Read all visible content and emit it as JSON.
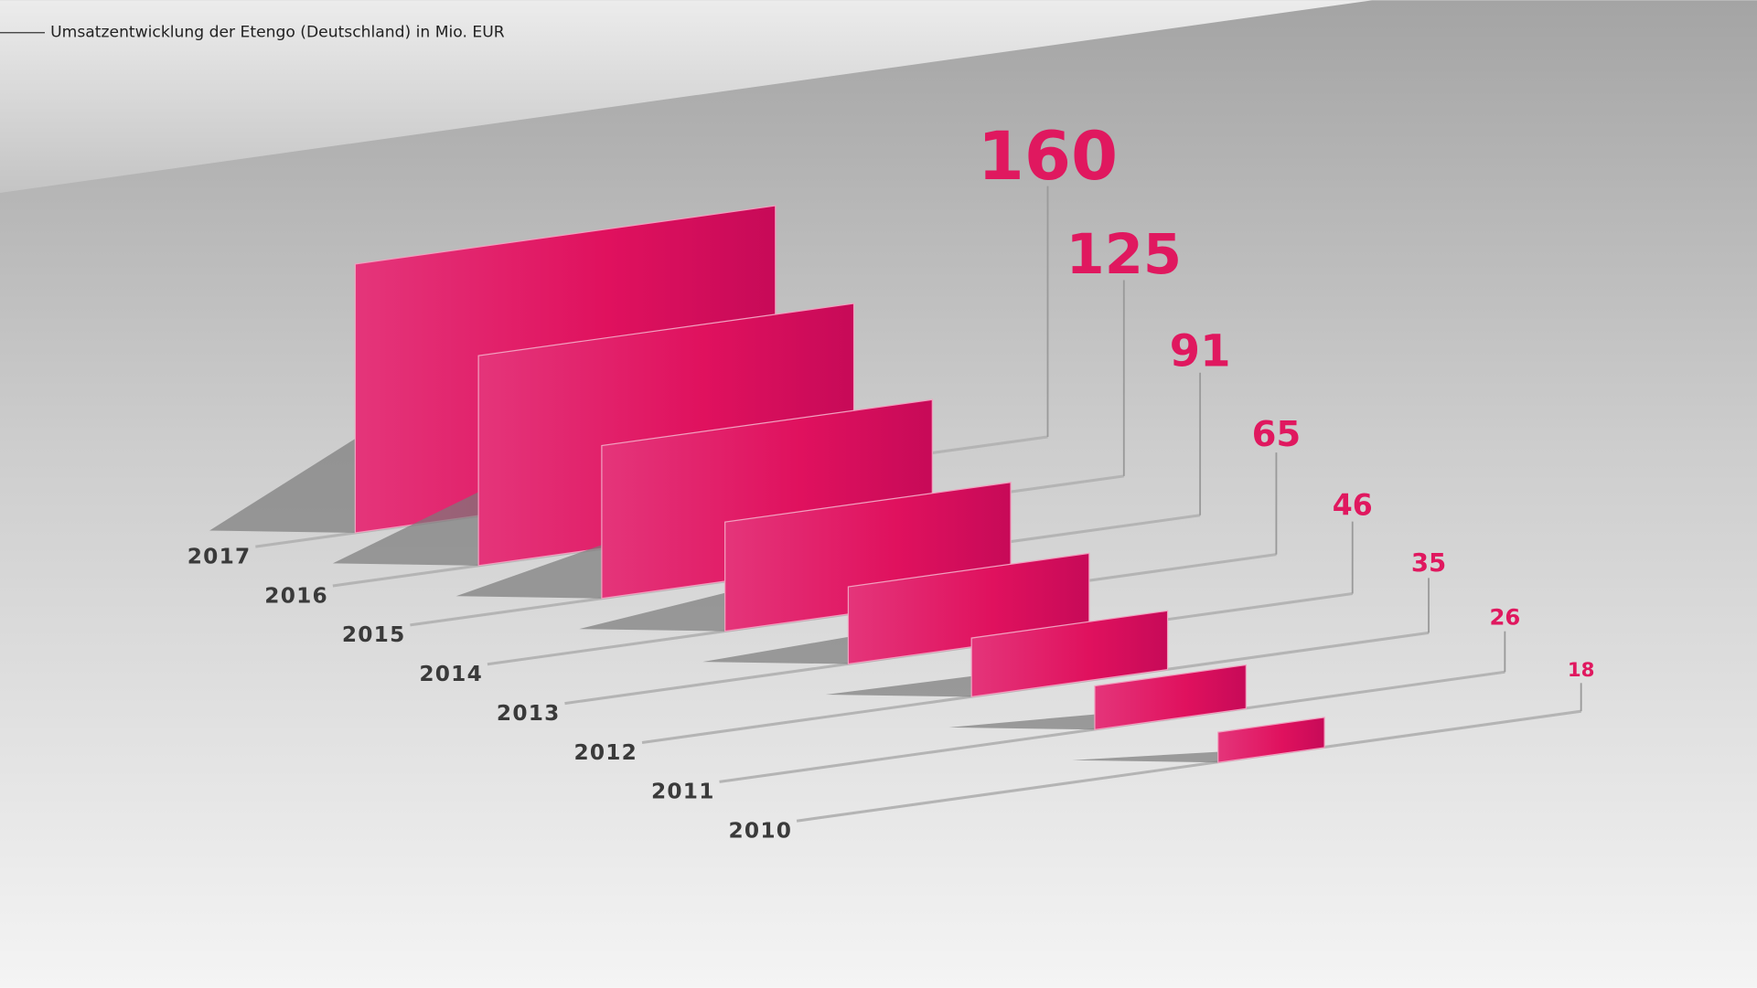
{
  "chart_data": {
    "type": "bar",
    "title": "Umsatzentwicklung der Etengo (Deutschland) in Mio. EUR",
    "categories": [
      "2017",
      "2016",
      "2015",
      "2014",
      "2013",
      "2012",
      "2011",
      "2010"
    ],
    "values": [
      160,
      125,
      91,
      65,
      46,
      35,
      26,
      18
    ],
    "color": "#e0185f"
  }
}
